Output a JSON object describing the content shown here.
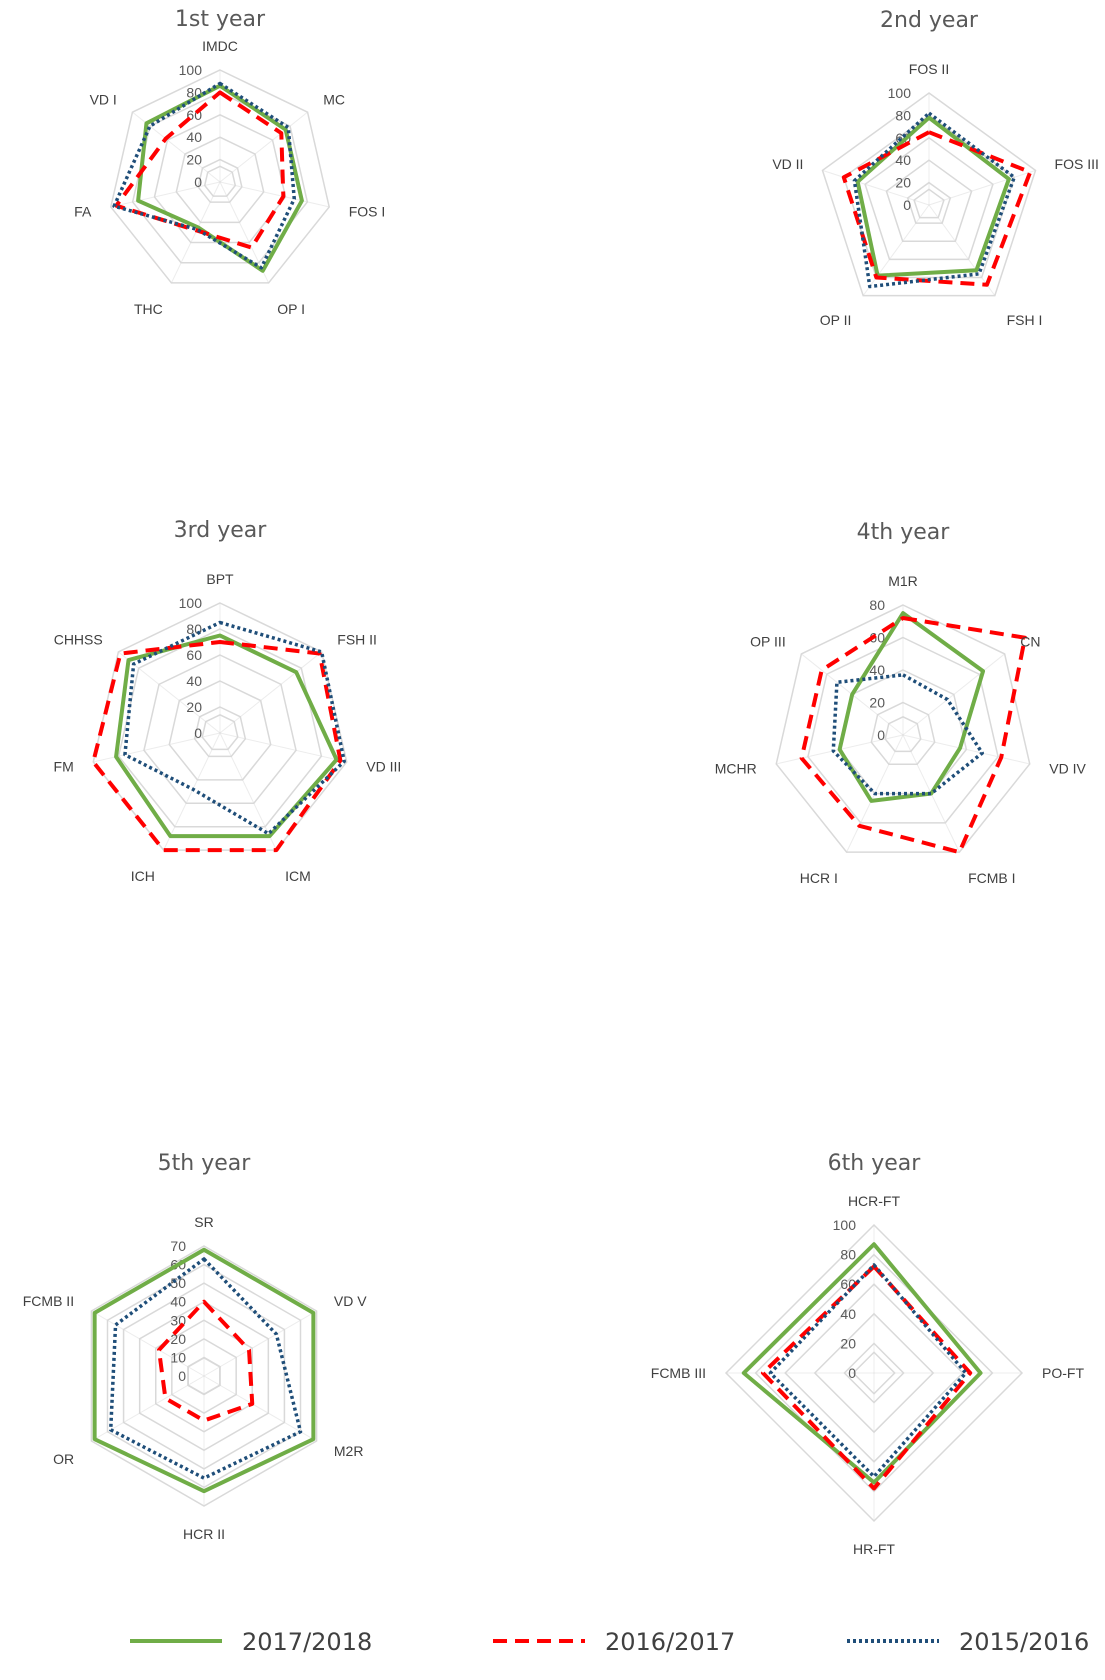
{
  "colors": {
    "2017/2018": "#70AD47",
    "2016/2017": "#FF0000",
    "2015/2016": "#1F4E79",
    "grid": "#D9D9D9"
  },
  "legend": {
    "position": "bottom",
    "items": [
      {
        "label": "2017/2018",
        "style": "solid"
      },
      {
        "label": "2016/2017",
        "style": "dashed"
      },
      {
        "label": "2015/2016",
        "style": "dotted"
      }
    ]
  },
  "chart_data": [
    {
      "type": "radar",
      "title": "1st year",
      "categories": [
        "IMDC",
        "MC",
        "FOS I",
        "OP I",
        "THC",
        "FA",
        "VD I"
      ],
      "ticks": [
        0,
        20,
        40,
        60,
        80,
        100
      ],
      "rlim": [
        0,
        100
      ],
      "series": [
        {
          "name": "2017/2018",
          "values": [
            86,
            75,
            75,
            88,
            45,
            75,
            84
          ]
        },
        {
          "name": "2016/2017",
          "values": [
            80,
            70,
            58,
            65,
            48,
            95,
            62
          ]
        },
        {
          "name": "2015/2016",
          "values": [
            88,
            78,
            68,
            85,
            47,
            97,
            80
          ]
        }
      ]
    },
    {
      "type": "radar",
      "title": "2nd year",
      "categories": [
        "FOS II",
        "FOS III",
        "FSH I",
        "OP II",
        "VD II"
      ],
      "ticks": [
        0,
        20,
        40,
        60,
        80,
        100
      ],
      "rlim": [
        0,
        100
      ],
      "series": [
        {
          "name": "2017/2018",
          "values": [
            78,
            75,
            72,
            78,
            67
          ]
        },
        {
          "name": "2016/2017",
          "values": [
            65,
            95,
            88,
            80,
            80
          ]
        },
        {
          "name": "2015/2016",
          "values": [
            82,
            80,
            76,
            90,
            70
          ]
        }
      ]
    },
    {
      "type": "radar",
      "title": "3rd year",
      "categories": [
        "BPT",
        "FSH II",
        "VD III",
        "ICM",
        "ICH",
        "FM",
        "CHHSS"
      ],
      "ticks": [
        0,
        20,
        40,
        60,
        80,
        100
      ],
      "rlim": [
        0,
        100
      ],
      "series": [
        {
          "name": "2017/2018",
          "values": [
            75,
            75,
            92,
            88,
            88,
            82,
            90
          ]
        },
        {
          "name": "2016/2017",
          "values": [
            70,
            98,
            95,
            100,
            100,
            100,
            98
          ]
        },
        {
          "name": "2015/2016",
          "values": [
            85,
            100,
            98,
            86,
            48,
            75,
            85
          ]
        }
      ]
    },
    {
      "type": "radar",
      "title": "4th year",
      "categories": [
        "M1R",
        "CN",
        "VD IV",
        "FCMB I",
        "HCR I",
        "MCHR",
        "OP III"
      ],
      "ticks": [
        0,
        20,
        40,
        60,
        80
      ],
      "rlim": [
        0,
        80
      ],
      "series": [
        {
          "name": "2017/2018",
          "values": [
            75,
            63,
            36,
            40,
            45,
            40,
            40
          ]
        },
        {
          "name": "2016/2017",
          "values": [
            72,
            96,
            62,
            80,
            62,
            64,
            64
          ]
        },
        {
          "name": "2015/2016",
          "values": [
            37,
            35,
            50,
            40,
            40,
            44,
            52
          ]
        }
      ]
    },
    {
      "type": "radar",
      "title": "5th year",
      "categories": [
        "SR",
        "VD V",
        "M2R",
        "HCR II",
        "OR",
        "FCMB II"
      ],
      "ticks": [
        0,
        10,
        20,
        30,
        40,
        50,
        60,
        70
      ],
      "rlim": [
        0,
        70
      ],
      "series": [
        {
          "name": "2017/2018",
          "values": [
            68,
            68,
            68,
            62,
            68,
            68
          ]
        },
        {
          "name": "2016/2017",
          "values": [
            40,
            28,
            30,
            24,
            24,
            28
          ]
        },
        {
          "name": "2015/2016",
          "values": [
            63,
            45,
            60,
            55,
            58,
            55
          ]
        }
      ]
    },
    {
      "type": "radar",
      "title": "6th year",
      "categories": [
        "HCR-FT",
        "PO-FT",
        "HR-FT",
        "FCMB III"
      ],
      "ticks": [
        0,
        20,
        40,
        60,
        80,
        100
      ],
      "rlim": [
        0,
        100
      ],
      "series": [
        {
          "name": "2017/2018",
          "values": [
            87,
            72,
            74,
            88
          ]
        },
        {
          "name": "2016/2017",
          "values": [
            72,
            65,
            78,
            75
          ]
        },
        {
          "name": "2015/2016",
          "values": [
            73,
            62,
            70,
            70
          ]
        }
      ]
    }
  ]
}
